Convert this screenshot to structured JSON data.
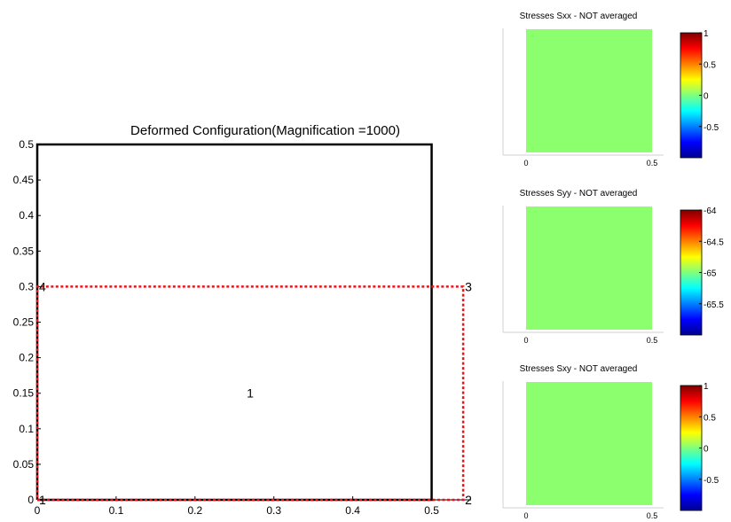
{
  "chart_data": [
    {
      "type": "line",
      "title": "Deformed Configuration(Magnification =1000)",
      "xlim": [
        0,
        0.55
      ],
      "ylim": [
        0,
        0.5
      ],
      "x_ticks": [
        "0",
        "0.1",
        "0.2",
        "0.3",
        "0.4",
        "0.5"
      ],
      "y_ticks": [
        "0",
        "0.05",
        "0.1",
        "0.15",
        "0.2",
        "0.25",
        "0.3",
        "0.35",
        "0.4",
        "0.45",
        "0.5"
      ],
      "series": [
        {
          "style": "solid",
          "color": "#000000",
          "points": [
            [
              0,
              0
            ],
            [
              0.5,
              0
            ],
            [
              0.5,
              0.5
            ],
            [
              0,
              0.5
            ],
            [
              0,
              0
            ]
          ]
        },
        {
          "style": "dotted",
          "color": "#e8141a",
          "points": [
            [
              0,
              0
            ],
            [
              0.54,
              0
            ],
            [
              0.54,
              0.3
            ],
            [
              0,
              0.3
            ],
            [
              0,
              0
            ]
          ]
        }
      ],
      "node_labels": [
        {
          "text": "1",
          "x": 0.0,
          "y": 0.0
        },
        {
          "text": "2",
          "x": 0.54,
          "y": 0.0
        },
        {
          "text": "3",
          "x": 0.54,
          "y": 0.3
        },
        {
          "text": "4",
          "x": 0.0,
          "y": 0.3
        }
      ],
      "element_label": {
        "text": "1",
        "x": 0.27,
        "y": 0.15
      }
    },
    {
      "type": "heatmap",
      "title": "Stresses Sxx - NOT averaged",
      "fill_color": "#8cff6e",
      "x_ticks": [
        "0",
        "0.5"
      ],
      "colorbar_range": [
        -1,
        1
      ],
      "colorbar_ticks": [
        "1",
        "0.5",
        "0",
        "-0.5"
      ]
    },
    {
      "type": "heatmap",
      "title": "Stresses Syy - NOT averaged",
      "fill_color": "#8cff6e",
      "x_ticks": [
        "0",
        "0.5"
      ],
      "colorbar_range": [
        -66,
        -64
      ],
      "colorbar_ticks": [
        "-64",
        "-64.5",
        "-65",
        "-65.5"
      ]
    },
    {
      "type": "heatmap",
      "title": "Stresses Sxy - NOT averaged",
      "fill_color": "#8cff6e",
      "x_ticks": [
        "0",
        "0.5"
      ],
      "colorbar_range": [
        -1,
        1
      ],
      "colorbar_ticks": [
        "1",
        "0.5",
        "0",
        "-0.5"
      ]
    }
  ]
}
